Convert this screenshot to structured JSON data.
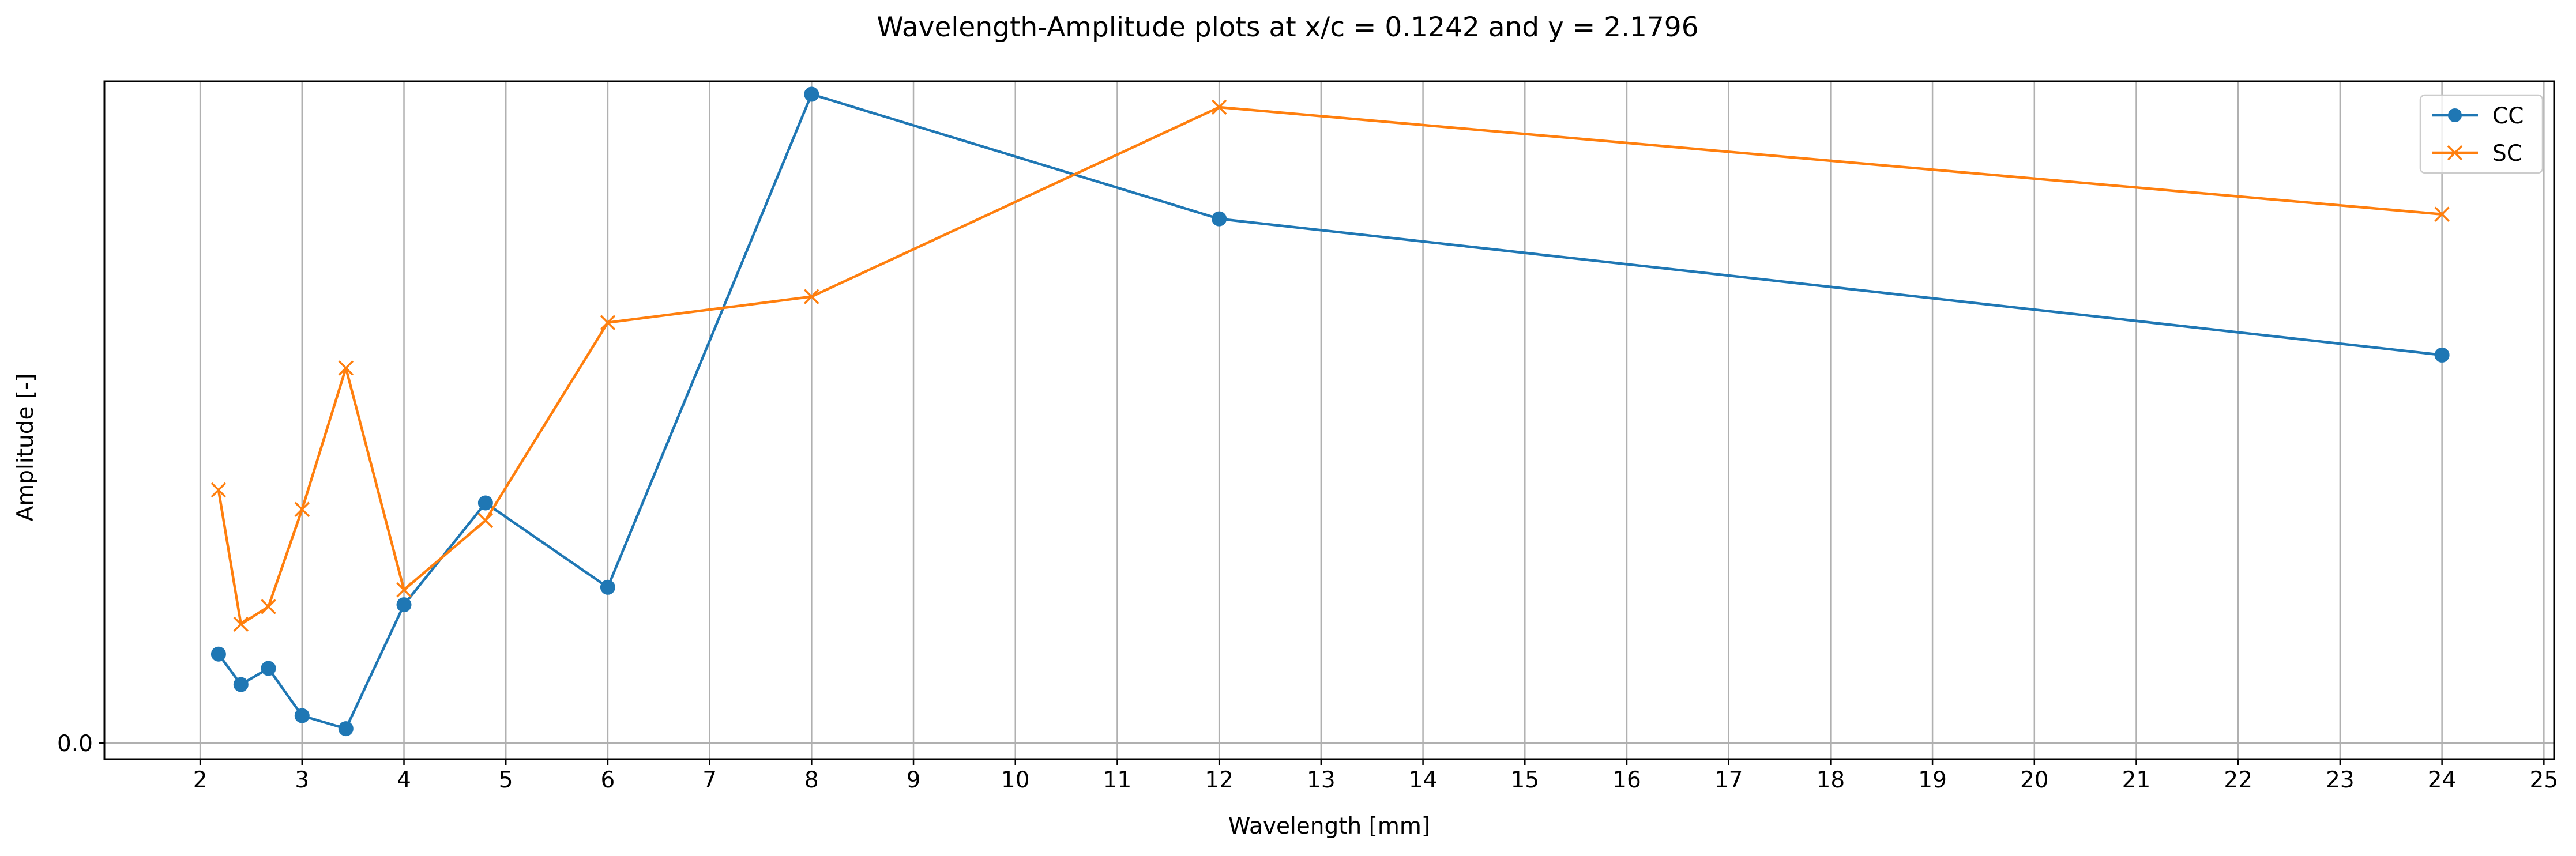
{
  "chart_data": {
    "type": "line",
    "title": "Wavelength-Amplitude plots at x/c = 0.1242 and y = 2.1796",
    "xlabel": "Wavelength [mm]",
    "ylabel": "Amplitude [-]",
    "xlim": [
      1.06,
      25.1
    ],
    "ylim": [
      -0.025,
      1.02
    ],
    "x_ticks": [
      2,
      3,
      4,
      5,
      6,
      7,
      8,
      9,
      10,
      11,
      12,
      13,
      14,
      15,
      16,
      17,
      18,
      19,
      20,
      21,
      22,
      23,
      24,
      25
    ],
    "x_tick_labels": [
      "2",
      "3",
      "4",
      "5",
      "6",
      "7",
      "8",
      "9",
      "10",
      "11",
      "12",
      "13",
      "14",
      "15",
      "16",
      "17",
      "18",
      "19",
      "20",
      "21",
      "22",
      "23",
      "24",
      "25"
    ],
    "y_ticks": [
      0.0
    ],
    "y_tick_labels": [
      "0.0"
    ],
    "grid": "x",
    "legend_position": "top-right",
    "series": [
      {
        "name": "CC",
        "color": "#1f77b4",
        "marker": "circle",
        "x": [
          2.18,
          2.4,
          2.67,
          3.0,
          3.43,
          4.0,
          4.8,
          6.0,
          8.0,
          12.0,
          24.0
        ],
        "y": [
          0.137,
          0.09,
          0.115,
          0.042,
          0.022,
          0.213,
          0.37,
          0.24,
          1.0,
          0.808,
          0.598
        ]
      },
      {
        "name": "SC",
        "color": "#ff7f0e",
        "marker": "x",
        "x": [
          2.18,
          2.4,
          2.67,
          3.0,
          3.43,
          4.0,
          4.8,
          6.0,
          8.0,
          12.0,
          24.0
        ],
        "y": [
          0.39,
          0.183,
          0.21,
          0.36,
          0.578,
          0.236,
          0.343,
          0.648,
          0.688,
          0.98,
          0.815
        ]
      }
    ]
  }
}
